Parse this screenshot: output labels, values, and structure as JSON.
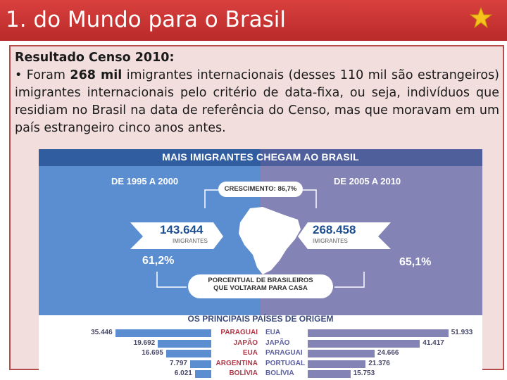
{
  "slide": {
    "title": "1. do Mundo para o Brasil",
    "text_heading": "Resultado Censo 2010:",
    "bullet_before": "• Foram ",
    "bullet_bold": "268 mil",
    "bullet_after": " imigrantes internacionais (desses 110 mil são estrangeiros) imigrantes internacionais pelo critério de data-fixa, ou seja, indivíduos que residiam no Brasil na data de referência do Censo, mas que moravam em um país estrangeiro cinco anos antes."
  },
  "infographic": {
    "heading": "MAIS IMIGRANTES CHEGAM AO BRASIL",
    "left_period": "DE 1995 A 2000",
    "right_period": "DE 2005 A 2010",
    "growth_label": "CRESCIMENTO: 86,7%",
    "left_number": "143.644",
    "right_number": "268.458",
    "number_unit": "IMIGRANTES",
    "left_pct": "61,2%",
    "right_pct": "65,1%",
    "pct_label_1": "PORCENTUAL DE BRASILEIROS",
    "pct_label_2": "QUE VOLTARAM PARA CASA",
    "countries_title": "OS PRINCIPAIS PAÍSES DE ORIGEM",
    "colors": {
      "left": "#5a8ed0",
      "right": "#8384b5",
      "header": "#2f5da0"
    }
  },
  "chart_data": {
    "type": "bar",
    "title": "OS PRINCIPAIS PAÍSES DE ORIGEM",
    "series": [
      {
        "name": "DE 1995 A 2000",
        "categories": [
          "PARAGUAI",
          "JAPÃO",
          "EUA",
          "ARGENTINA",
          "BOLÍVIA"
        ],
        "values": [
          35446,
          19692,
          16695,
          7797,
          6021
        ],
        "labels": [
          "35.446",
          "19.692",
          "16.695",
          "7.797",
          "6.021"
        ]
      },
      {
        "name": "DE 2005 A 2010",
        "categories": [
          "EUA",
          "JAPÃO",
          "PARAGUAI",
          "PORTUGAL",
          "BOLÍVIA"
        ],
        "values": [
          51933,
          41417,
          24666,
          21376,
          15753
        ],
        "labels": [
          "51.933",
          "41.417",
          "24.666",
          "21.376",
          "15.753"
        ]
      }
    ]
  }
}
